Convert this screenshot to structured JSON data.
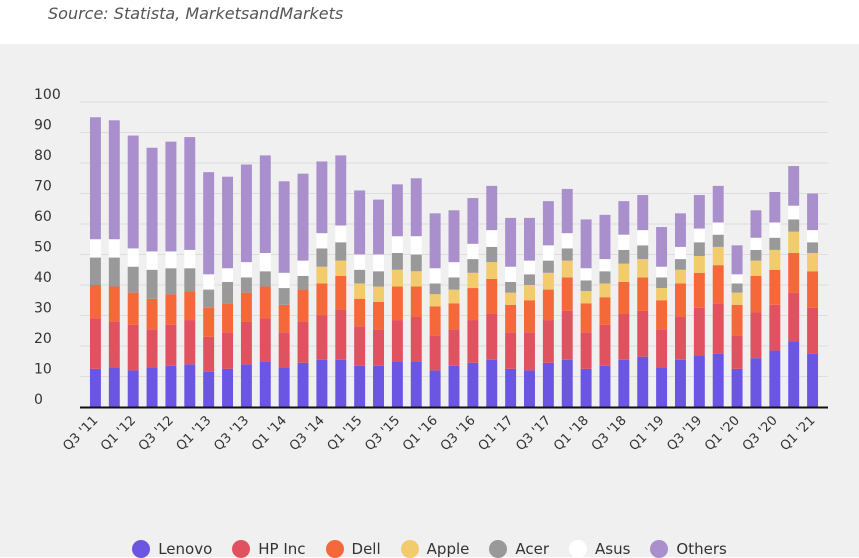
{
  "source": "Source: Statista, MarketsandMarkets",
  "legend_order": [
    "Lenovo",
    "HP Inc",
    "Dell",
    "Apple",
    "Acer",
    "Asus",
    "Others"
  ],
  "colors": {
    "Lenovo": "#6b56e3",
    "HP Inc": "#e05260",
    "Dell": "#f4683a",
    "Apple": "#f2cb6c",
    "Acer": "#999999",
    "Asus": "#ffffff",
    "Others": "#aa8fcd",
    "background": "#f0f0f0",
    "grid": "#dddddd",
    "axis": "#111111"
  },
  "chart_data": {
    "type": "bar",
    "stacked": true,
    "categories": [
      "Q3 '11",
      "Q4 '11",
      "Q1 '12",
      "Q2 '12",
      "Q3 '12",
      "Q4 '12",
      "Q1 '13",
      "Q2 '13",
      "Q3 '13",
      "Q4 '13",
      "Q1 '14",
      "Q2 '14",
      "Q3 '14",
      "Q4 '14",
      "Q1 '15",
      "Q2 '15",
      "Q3 '15",
      "Q4 '15",
      "Q1 '16",
      "Q2 '16",
      "Q3 '16",
      "Q4 '16",
      "Q1 '17",
      "Q2 '17",
      "Q3 '17",
      "Q4 '17",
      "Q1 '18",
      "Q2 '18",
      "Q3 '18",
      "Q4 '18",
      "Q1 '19",
      "Q2 '19",
      "Q3 '19",
      "Q4 '19",
      "Q1 '20",
      "Q2 '20",
      "Q3 '20",
      "Q4 '20",
      "Q1 '21"
    ],
    "tick_labels": [
      "Q3 '11",
      "Q1 '12",
      "Q3 '12",
      "Q1 '13",
      "Q3 '13",
      "Q1 '14",
      "Q3 '14",
      "Q1 '15",
      "Q3 '15",
      "Q1 '16",
      "Q3 '16",
      "Q1 '17",
      "Q3 '17",
      "Q1 '18",
      "Q3 '18",
      "Q1 '19",
      "Q3 '19",
      "Q1 '20",
      "Q3 '20",
      "Q1 '21"
    ],
    "ylim": [
      0,
      100
    ],
    "yticks": [
      0,
      10,
      20,
      30,
      40,
      50,
      60,
      70,
      80,
      90,
      100
    ],
    "grid": true,
    "legend": "bottom",
    "series": [
      {
        "name": "Lenovo",
        "values": [
          12.5,
          13,
          12,
          13,
          13.5,
          14,
          11.5,
          12.5,
          14,
          15,
          13,
          14.5,
          15.5,
          15.5,
          13.5,
          13.5,
          15,
          15,
          12,
          13.5,
          14.5,
          15.5,
          12.5,
          12,
          14.5,
          15.5,
          12.5,
          13.5,
          15.5,
          16.5,
          13,
          15.5,
          17,
          17.5,
          12.5,
          16,
          18.5,
          21.5,
          17.5
        ]
      },
      {
        "name": "HP Inc",
        "values": [
          16.5,
          15,
          15,
          12.5,
          13.5,
          14.5,
          11.5,
          12,
          14,
          14,
          11.5,
          13.5,
          14.5,
          16.5,
          13,
          12,
          13.5,
          14.5,
          11.5,
          12,
          14,
          15,
          12,
          12.5,
          14,
          16,
          12,
          13.5,
          15,
          15,
          12.5,
          14,
          15.5,
          16.5,
          11,
          15,
          15,
          16,
          15
        ]
      },
      {
        "name": "Dell",
        "values": [
          11,
          11.5,
          10.5,
          10,
          10,
          9.5,
          9.5,
          9.5,
          9.5,
          10.5,
          9,
          10.5,
          10.5,
          11,
          9,
          9,
          11,
          10,
          9.5,
          8.5,
          10.5,
          11.5,
          9,
          10.5,
          10,
          11,
          9.5,
          9,
          10.5,
          11,
          9.5,
          11,
          11.5,
          12.5,
          10,
          12,
          11.5,
          13,
          12
        ]
      },
      {
        "name": "Apple",
        "values": [
          0,
          0,
          0,
          0,
          0,
          0,
          0,
          0,
          0,
          0,
          0,
          0,
          5.5,
          5,
          5,
          5,
          5.5,
          5,
          4,
          4.5,
          5,
          5.5,
          4,
          5,
          5.5,
          5.5,
          4,
          4.5,
          6,
          6,
          4,
          4.5,
          5.5,
          6,
          4,
          5,
          6.5,
          7,
          6
        ]
      },
      {
        "name": "Acer",
        "values": [
          9,
          9.5,
          8.5,
          9.5,
          8.5,
          7.5,
          6,
          7,
          5,
          5,
          5.5,
          4.5,
          6,
          6,
          4.5,
          5,
          5.5,
          5.5,
          3.5,
          4,
          4.5,
          5,
          3.5,
          3.5,
          4,
          4,
          3.5,
          4,
          4.5,
          4.5,
          3.5,
          3.5,
          4.5,
          4,
          3,
          3.5,
          4,
          4,
          3.5
        ]
      },
      {
        "name": "Asus",
        "values": [
          6,
          6,
          6,
          6,
          5.5,
          6,
          5,
          4.5,
          5,
          6,
          5,
          5,
          5,
          5.5,
          5,
          5.5,
          5.5,
          6,
          5,
          5,
          5,
          5.5,
          5,
          4.5,
          5,
          5,
          4,
          4,
          5,
          5,
          3.5,
          4,
          4.5,
          4,
          3,
          4,
          5,
          4.5,
          4
        ]
      },
      {
        "name": "Others",
        "values": [
          40,
          39,
          37,
          34,
          36,
          37,
          33.5,
          30,
          32,
          32,
          30,
          28.5,
          23.5,
          23,
          21,
          18,
          17,
          19,
          18,
          17,
          15,
          14.5,
          16,
          14,
          14.5,
          14.5,
          16,
          14.5,
          11,
          11.5,
          13,
          11,
          11,
          12,
          9.5,
          9,
          10,
          13,
          12
        ]
      }
    ]
  }
}
